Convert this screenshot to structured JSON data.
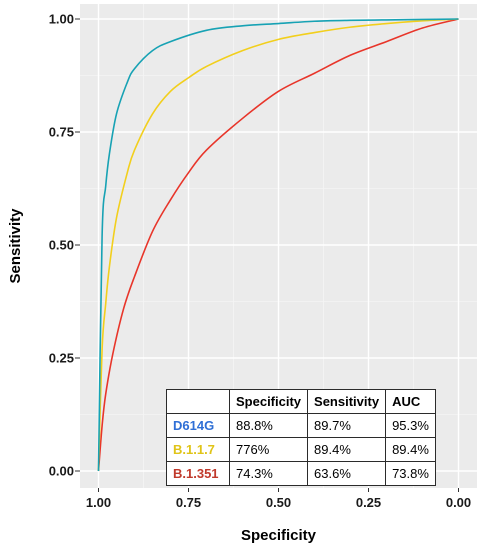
{
  "chart_data": {
    "type": "line",
    "title": "",
    "xlabel": "Specificity",
    "ylabel": "Sensitivity",
    "x_reversed": true,
    "xlim": [
      1.0,
      0.0
    ],
    "ylim": [
      0.0,
      1.0
    ],
    "x_ticks": [
      "1.00",
      "0.75",
      "0.50",
      "0.25",
      "0.00"
    ],
    "y_ticks": [
      "0.00",
      "0.25",
      "0.50",
      "0.75",
      "1.00"
    ],
    "grid": true,
    "series": [
      {
        "name": "D614G",
        "color": "#17a2b4",
        "specificity": [
          1.0,
          0.99,
          0.98,
          0.97,
          0.95,
          0.92,
          0.9,
          0.85,
          0.8,
          0.7,
          0.6,
          0.5,
          0.4,
          0.3,
          0.2,
          0.1,
          0.0
        ],
        "sensitivity": [
          0.0,
          0.52,
          0.63,
          0.7,
          0.79,
          0.86,
          0.89,
          0.93,
          0.95,
          0.975,
          0.985,
          0.99,
          0.995,
          0.997,
          0.998,
          0.999,
          1.0
        ]
      },
      {
        "name": "B.1.1.7",
        "color": "#f2cf1c",
        "specificity": [
          1.0,
          0.99,
          0.98,
          0.97,
          0.95,
          0.92,
          0.9,
          0.85,
          0.8,
          0.75,
          0.7,
          0.6,
          0.5,
          0.4,
          0.3,
          0.2,
          0.1,
          0.0
        ],
        "sensitivity": [
          0.0,
          0.27,
          0.37,
          0.45,
          0.56,
          0.66,
          0.71,
          0.79,
          0.84,
          0.87,
          0.895,
          0.93,
          0.955,
          0.97,
          0.982,
          0.99,
          0.996,
          1.0
        ]
      },
      {
        "name": "B.1.351",
        "color": "#e8352a",
        "specificity": [
          1.0,
          0.99,
          0.98,
          0.96,
          0.93,
          0.9,
          0.85,
          0.8,
          0.75,
          0.7,
          0.6,
          0.5,
          0.4,
          0.3,
          0.2,
          0.1,
          0.0
        ],
        "sensitivity": [
          0.0,
          0.1,
          0.17,
          0.26,
          0.36,
          0.43,
          0.53,
          0.6,
          0.66,
          0.71,
          0.78,
          0.84,
          0.88,
          0.92,
          0.95,
          0.98,
          1.0
        ]
      }
    ]
  },
  "table": {
    "headers": [
      "Specificity",
      "Sensitivity",
      "AUC"
    ],
    "rows": [
      {
        "name": "D614G",
        "name_color": "#2f6fd6",
        "specificity": "88.8%",
        "sensitivity": "89.7%",
        "auc": "95.3%"
      },
      {
        "name": "B.1.1.7",
        "name_color": "#e0c418",
        "specificity": "776%",
        "sensitivity": "89.4%",
        "auc": "89.4%"
      },
      {
        "name": "B.1.351",
        "name_color": "#c0392b",
        "specificity": "74.3%",
        "sensitivity": "63.6%",
        "auc": "73.8%"
      }
    ]
  }
}
